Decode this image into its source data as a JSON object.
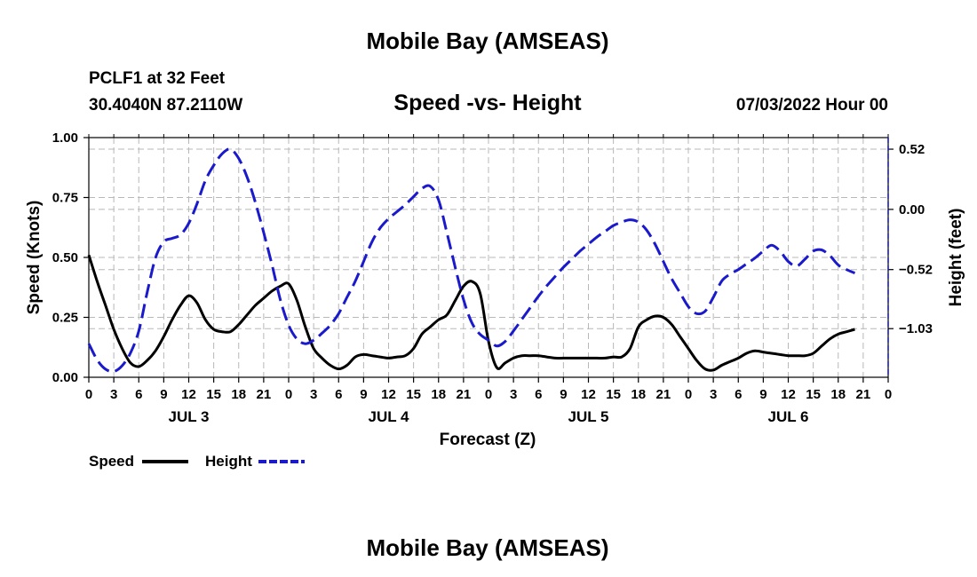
{
  "page": {
    "top_title": "Mobile Bay (AMSEAS)",
    "bottom_title": "Mobile Bay (AMSEAS)",
    "station": "PCLF1 at 32 Feet",
    "coordinates": "30.4040N  87.2110W",
    "datetime": "07/03/2022 Hour 00"
  },
  "chart_data": {
    "type": "line",
    "title": "Speed -vs- Height",
    "xlabel": "Forecast (Z)",
    "ylabel": "Speed (Knots)",
    "y2label": "Height (feet)",
    "x_range": [
      0,
      96
    ],
    "ylim": [
      0,
      1.0
    ],
    "y2lim": [
      -1.45,
      0.62
    ],
    "yticks": [
      {
        "v": 0.0,
        "label": "0.00"
      },
      {
        "v": 0.25,
        "label": "0.25"
      },
      {
        "v": 0.5,
        "label": "0.50"
      },
      {
        "v": 0.75,
        "label": "0.75"
      },
      {
        "v": 1.0,
        "label": "1.00"
      }
    ],
    "y2ticks": [
      {
        "v": 0.52,
        "label": "0.52"
      },
      {
        "v": 0.0,
        "label": "0.00"
      },
      {
        "v": -0.52,
        "label": "−0.52"
      },
      {
        "v": -1.03,
        "label": "−1.03"
      }
    ],
    "xtick_labels": [
      "0",
      "3",
      "6",
      "9",
      "12",
      "15",
      "18",
      "21",
      "0",
      "3",
      "6",
      "9",
      "12",
      "15",
      "18",
      "21",
      "0",
      "3",
      "6",
      "9",
      "12",
      "15",
      "18",
      "21",
      "0",
      "3",
      "6",
      "9",
      "12",
      "15",
      "18",
      "21",
      "0"
    ],
    "days": [
      {
        "label": "JUL 3",
        "center": 12
      },
      {
        "label": "JUL 4",
        "center": 36
      },
      {
        "label": "JUL 5",
        "center": 60
      },
      {
        "label": "JUL 6",
        "center": 84
      }
    ],
    "series": [
      {
        "name": "Speed",
        "axis": "left",
        "color": "#000000",
        "style": "solid",
        "points": [
          [
            0,
            0.51
          ],
          [
            1,
            0.4
          ],
          [
            2,
            0.3
          ],
          [
            3,
            0.2
          ],
          [
            4,
            0.12
          ],
          [
            5,
            0.06
          ],
          [
            6,
            0.045
          ],
          [
            7,
            0.07
          ],
          [
            8,
            0.11
          ],
          [
            9,
            0.17
          ],
          [
            10,
            0.24
          ],
          [
            11,
            0.3
          ],
          [
            12,
            0.34
          ],
          [
            13,
            0.31
          ],
          [
            14,
            0.24
          ],
          [
            15,
            0.2
          ],
          [
            16,
            0.19
          ],
          [
            17,
            0.19
          ],
          [
            18,
            0.22
          ],
          [
            19,
            0.26
          ],
          [
            20,
            0.3
          ],
          [
            21,
            0.33
          ],
          [
            22,
            0.36
          ],
          [
            23,
            0.38
          ],
          [
            24,
            0.39
          ],
          [
            25,
            0.32
          ],
          [
            26,
            0.21
          ],
          [
            27,
            0.12
          ],
          [
            28,
            0.08
          ],
          [
            29,
            0.05
          ],
          [
            30,
            0.035
          ],
          [
            31,
            0.05
          ],
          [
            32,
            0.085
          ],
          [
            33,
            0.095
          ],
          [
            34,
            0.09
          ],
          [
            35,
            0.085
          ],
          [
            36,
            0.08
          ],
          [
            37,
            0.085
          ],
          [
            38,
            0.09
          ],
          [
            39,
            0.12
          ],
          [
            40,
            0.18
          ],
          [
            41,
            0.21
          ],
          [
            42,
            0.24
          ],
          [
            43,
            0.26
          ],
          [
            44,
            0.32
          ],
          [
            45,
            0.38
          ],
          [
            46,
            0.4
          ],
          [
            47,
            0.35
          ],
          [
            48,
            0.15
          ],
          [
            49,
            0.04
          ],
          [
            50,
            0.06
          ],
          [
            51,
            0.08
          ],
          [
            52,
            0.09
          ],
          [
            53,
            0.09
          ],
          [
            54,
            0.09
          ],
          [
            55,
            0.085
          ],
          [
            56,
            0.08
          ],
          [
            57,
            0.08
          ],
          [
            58,
            0.08
          ],
          [
            59,
            0.08
          ],
          [
            60,
            0.08
          ],
          [
            61,
            0.08
          ],
          [
            62,
            0.08
          ],
          [
            63,
            0.085
          ],
          [
            64,
            0.085
          ],
          [
            65,
            0.12
          ],
          [
            66,
            0.21
          ],
          [
            67,
            0.24
          ],
          [
            68,
            0.255
          ],
          [
            69,
            0.25
          ],
          [
            70,
            0.22
          ],
          [
            71,
            0.17
          ],
          [
            72,
            0.12
          ],
          [
            73,
            0.07
          ],
          [
            74,
            0.035
          ],
          [
            75,
            0.03
          ],
          [
            76,
            0.05
          ],
          [
            77,
            0.065
          ],
          [
            78,
            0.08
          ],
          [
            79,
            0.1
          ],
          [
            80,
            0.11
          ],
          [
            81,
            0.105
          ],
          [
            82,
            0.1
          ],
          [
            83,
            0.095
          ],
          [
            84,
            0.09
          ],
          [
            85,
            0.09
          ],
          [
            86,
            0.09
          ],
          [
            87,
            0.1
          ],
          [
            88,
            0.13
          ],
          [
            89,
            0.16
          ],
          [
            90,
            0.18
          ],
          [
            91,
            0.19
          ],
          [
            92,
            0.2
          ]
        ]
      },
      {
        "name": "Height",
        "axis": "right",
        "color": "#1a1acc",
        "style": "dashed",
        "points": [
          [
            0,
            -1.16
          ],
          [
            1,
            -1.3
          ],
          [
            2,
            -1.38
          ],
          [
            3,
            -1.4
          ],
          [
            4,
            -1.35
          ],
          [
            5,
            -1.24
          ],
          [
            6,
            -1.05
          ],
          [
            7,
            -0.72
          ],
          [
            8,
            -0.42
          ],
          [
            9,
            -0.28
          ],
          [
            10,
            -0.25
          ],
          [
            11,
            -0.22
          ],
          [
            12,
            -0.12
          ],
          [
            13,
            0.05
          ],
          [
            14,
            0.25
          ],
          [
            15,
            0.38
          ],
          [
            16,
            0.48
          ],
          [
            17,
            0.52
          ],
          [
            18,
            0.44
          ],
          [
            19,
            0.28
          ],
          [
            20,
            0.06
          ],
          [
            21,
            -0.2
          ],
          [
            22,
            -0.48
          ],
          [
            23,
            -0.78
          ],
          [
            24,
            -1.0
          ],
          [
            25,
            -1.12
          ],
          [
            26,
            -1.16
          ],
          [
            27,
            -1.13
          ],
          [
            28,
            -1.07
          ],
          [
            29,
            -1.0
          ],
          [
            30,
            -0.9
          ],
          [
            31,
            -0.76
          ],
          [
            32,
            -0.62
          ],
          [
            33,
            -0.45
          ],
          [
            34,
            -0.28
          ],
          [
            35,
            -0.16
          ],
          [
            36,
            -0.08
          ],
          [
            37,
            -0.02
          ],
          [
            38,
            0.04
          ],
          [
            39,
            0.11
          ],
          [
            40,
            0.18
          ],
          [
            41,
            0.2
          ],
          [
            42,
            0.08
          ],
          [
            43,
            -0.2
          ],
          [
            44,
            -0.5
          ],
          [
            45,
            -0.78
          ],
          [
            46,
            -0.98
          ],
          [
            47,
            -1.08
          ],
          [
            48,
            -1.13
          ],
          [
            49,
            -1.18
          ],
          [
            50,
            -1.14
          ],
          [
            51,
            -1.05
          ],
          [
            52,
            -0.95
          ],
          [
            53,
            -0.85
          ],
          [
            54,
            -0.75
          ],
          [
            55,
            -0.66
          ],
          [
            56,
            -0.58
          ],
          [
            57,
            -0.5
          ],
          [
            58,
            -0.43
          ],
          [
            59,
            -0.36
          ],
          [
            60,
            -0.3
          ],
          [
            61,
            -0.24
          ],
          [
            62,
            -0.19
          ],
          [
            63,
            -0.14
          ],
          [
            64,
            -0.11
          ],
          [
            65,
            -0.09
          ],
          [
            66,
            -0.11
          ],
          [
            67,
            -0.18
          ],
          [
            68,
            -0.3
          ],
          [
            69,
            -0.45
          ],
          [
            70,
            -0.6
          ],
          [
            71,
            -0.72
          ],
          [
            72,
            -0.84
          ],
          [
            73,
            -0.9
          ],
          [
            74,
            -0.88
          ],
          [
            75,
            -0.76
          ],
          [
            76,
            -0.62
          ],
          [
            77,
            -0.56
          ],
          [
            78,
            -0.52
          ],
          [
            79,
            -0.47
          ],
          [
            80,
            -0.42
          ],
          [
            81,
            -0.36
          ],
          [
            82,
            -0.31
          ],
          [
            83,
            -0.36
          ],
          [
            84,
            -0.45
          ],
          [
            85,
            -0.49
          ],
          [
            86,
            -0.43
          ],
          [
            87,
            -0.36
          ],
          [
            88,
            -0.35
          ],
          [
            89,
            -0.4
          ],
          [
            90,
            -0.48
          ],
          [
            91,
            -0.52
          ],
          [
            92,
            -0.55
          ]
        ]
      }
    ],
    "legend": [
      {
        "label": "Speed",
        "color": "#000000",
        "style": "solid"
      },
      {
        "label": "Height",
        "color": "#1a1acc",
        "style": "dashed"
      }
    ]
  }
}
